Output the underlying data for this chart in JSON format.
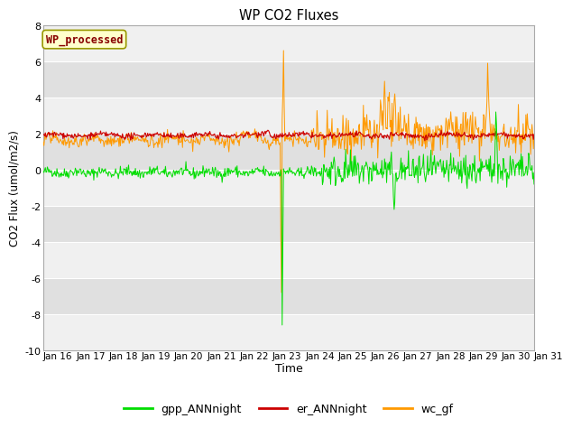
{
  "title": "WP CO2 Fluxes",
  "xlabel": "Time",
  "ylabel": "CO2 Flux (umol/m2/s)",
  "ylim": [
    -10,
    8
  ],
  "yticks": [
    -10,
    -8,
    -6,
    -4,
    -2,
    0,
    2,
    4,
    6,
    8
  ],
  "n_days": 15,
  "n_per_day": 48,
  "x_tick_labels": [
    "Jan 16",
    "Jan 17",
    "Jan 18",
    "Jan 19",
    "Jan 20",
    "Jan 21",
    "Jan 22",
    "Jan 23",
    "Jan 24",
    "Jan 25",
    "Jan 26",
    "Jan 27",
    "Jan 28",
    "Jan 29",
    "Jan 30",
    "Jan 31"
  ],
  "colors": {
    "gpp": "#00dd00",
    "er": "#cc0000",
    "wc": "#ff9900"
  },
  "legend_labels": [
    "gpp_ANNnight",
    "er_ANNnight",
    "wc_gf"
  ],
  "annotation_text": "WP_processed",
  "annotation_bg": "#ffffcc",
  "annotation_border": "#999900",
  "annotation_text_color": "#880000",
  "band_colors_light": "#f0f0f0",
  "band_colors_dark": "#e0e0e0",
  "figsize": [
    6.4,
    4.8
  ],
  "dpi": 100
}
